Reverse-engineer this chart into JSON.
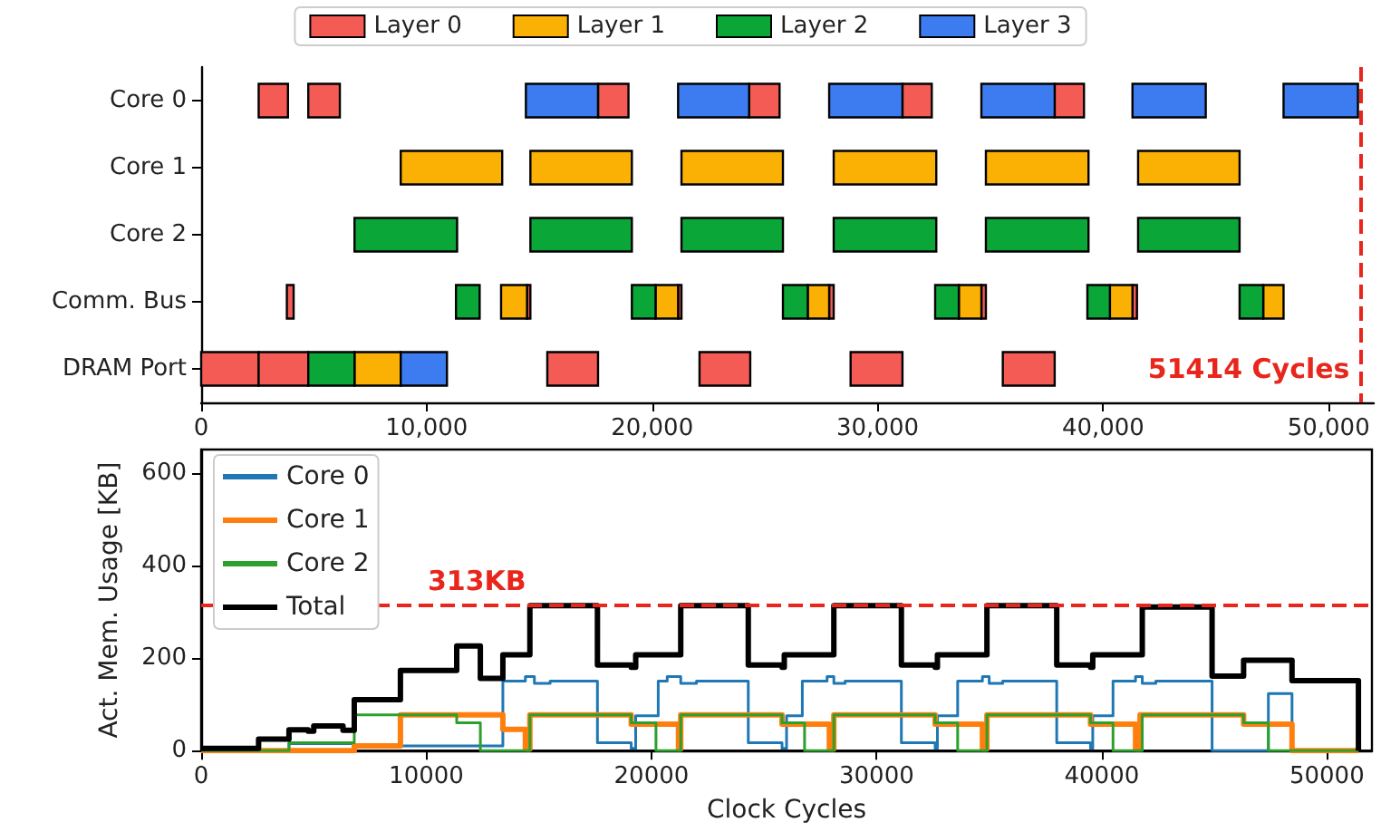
{
  "chart_data": [
    {
      "type": "bar",
      "orientation": "horizontal",
      "categories": [
        "Core 0",
        "Core 1",
        "Core 2",
        "Comm. Bus",
        "DRAM Port"
      ],
      "xlim": [
        0,
        52000
      ],
      "xticks": [
        0,
        {
          "value": 10000,
          "label": "10,000"
        },
        {
          "value": 20000,
          "label": "20,000"
        },
        {
          "value": 30000,
          "label": "30,000"
        },
        {
          "value": 40000,
          "label": "40,000"
        },
        {
          "value": 50000,
          "label": "50,000"
        }
      ],
      "legend": "top",
      "grid": false,
      "ref_lines": [
        {
          "axis": "x",
          "value": 51414,
          "label": "51414 Cycles",
          "color": "#e8261c",
          "line_style": "dashed"
        }
      ],
      "series": [
        {
          "name": "Layer 0",
          "color": "#f55b55",
          "values": [
            1300,
            null,
            null,
            300,
            2550
          ],
          "base": [
            2550,
            null,
            null,
            3800,
            0
          ]
        },
        {
          "color": "#f55b55",
          "values": [
            1400,
            null,
            null,
            150,
            2200
          ],
          "base": [
            4750,
            null,
            null,
            14450,
            2550
          ]
        },
        {
          "color": "#f55b55",
          "values": [
            1350,
            null,
            null,
            150,
            2250
          ],
          "base": [
            17600,
            null,
            null,
            21150,
            15350
          ]
        },
        {
          "color": "#f55b55",
          "values": [
            1350,
            null,
            null,
            200,
            2250
          ],
          "base": [
            24300,
            null,
            null,
            27850,
            22100
          ]
        },
        {
          "color": "#f55b55",
          "values": [
            1300,
            null,
            null,
            200,
            2300
          ],
          "base": [
            31100,
            null,
            null,
            34600,
            28800
          ]
        },
        {
          "color": "#f55b55",
          "values": [
            1300,
            null,
            null,
            200,
            2300
          ],
          "base": [
            37850,
            null,
            null,
            41300,
            35550
          ]
        },
        {
          "name": "Layer 1",
          "color": "#fbb104",
          "values": [
            null,
            4500,
            null,
            1150,
            2050
          ],
          "base": [
            null,
            8850,
            null,
            13300,
            6800
          ]
        },
        {
          "color": "#fbb104",
          "values": [
            null,
            4500,
            null,
            1000,
            null
          ],
          "base": [
            null,
            14600,
            null,
            20150,
            null
          ]
        },
        {
          "color": "#fbb104",
          "values": [
            null,
            4500,
            null,
            950,
            null
          ],
          "base": [
            null,
            21300,
            null,
            26900,
            null
          ]
        },
        {
          "color": "#fbb104",
          "values": [
            null,
            4550,
            null,
            1000,
            null
          ],
          "base": [
            null,
            28050,
            null,
            33600,
            null
          ]
        },
        {
          "color": "#fbb104",
          "values": [
            null,
            4550,
            null,
            1000,
            null
          ],
          "base": [
            null,
            34800,
            null,
            40300,
            null
          ]
        },
        {
          "color": "#fbb104",
          "values": [
            null,
            4500,
            null,
            900,
            null
          ],
          "base": [
            null,
            41550,
            null,
            47100,
            null
          ]
        },
        {
          "name": "Layer 2",
          "color": "#0aa637",
          "values": [
            null,
            null,
            4550,
            1050,
            2050
          ],
          "base": [
            null,
            null,
            6800,
            11300,
            4750
          ]
        },
        {
          "color": "#0aa637",
          "values": [
            null,
            null,
            4500,
            1050,
            null
          ],
          "base": [
            null,
            null,
            14600,
            19100,
            null
          ]
        },
        {
          "color": "#0aa637",
          "values": [
            null,
            null,
            4500,
            1100,
            null
          ],
          "base": [
            null,
            null,
            21300,
            25800,
            null
          ]
        },
        {
          "color": "#0aa637",
          "values": [
            null,
            null,
            4550,
            1050,
            null
          ],
          "base": [
            null,
            null,
            28050,
            32550,
            null
          ]
        },
        {
          "color": "#0aa637",
          "values": [
            null,
            null,
            4550,
            1000,
            null
          ],
          "base": [
            null,
            null,
            34800,
            39300,
            null
          ]
        },
        {
          "color": "#0aa637",
          "values": [
            null,
            null,
            4500,
            1050,
            null
          ],
          "base": [
            null,
            null,
            41550,
            46050,
            null
          ]
        },
        {
          "name": "Layer 3",
          "color": "#3d7cf0",
          "values": [
            3200,
            null,
            null,
            null,
            2050
          ],
          "base": [
            14400,
            null,
            null,
            null,
            8850
          ]
        },
        {
          "color": "#3d7cf0",
          "values": [
            3150,
            null,
            null,
            null,
            null
          ],
          "base": [
            21150,
            null,
            null,
            null,
            null
          ]
        },
        {
          "color": "#3d7cf0",
          "values": [
            3250,
            null,
            null,
            null,
            null
          ],
          "base": [
            27850,
            null,
            null,
            null,
            null
          ]
        },
        {
          "color": "#3d7cf0",
          "values": [
            3250,
            null,
            null,
            null,
            null
          ],
          "base": [
            34600,
            null,
            null,
            null,
            null
          ]
        },
        {
          "color": "#3d7cf0",
          "values": [
            3250,
            null,
            null,
            null,
            null
          ],
          "base": [
            41300,
            null,
            null,
            null,
            null
          ]
        },
        {
          "color": "#3d7cf0",
          "values": [
            3300,
            null,
            null,
            null,
            null
          ],
          "base": [
            48000,
            null,
            null,
            null,
            null
          ]
        }
      ]
    },
    {
      "type": "step",
      "xlabel": "Clock Cycles",
      "ylabel": "Act. Mem. Usage [KB]",
      "xlim": [
        0,
        52000
      ],
      "xticks": [
        0,
        10000,
        20000,
        30000,
        40000,
        50000
      ],
      "ylim": [
        0,
        650
      ],
      "yticks": [
        0,
        200,
        400,
        600
      ],
      "legend": "top left",
      "grid": false,
      "marker": "none",
      "ref_lines": [
        {
          "axis": "y",
          "value": 313,
          "label": "313KB",
          "color": "#e8261c",
          "line_style": "dashed"
        }
      ],
      "series": [
        {
          "name": "Core 0",
          "color": "#1f77b4",
          "x": [
            0,
            3900,
            6800,
            13400,
            14400,
            14800,
            15500,
            17600,
            19100,
            19300,
            20300,
            20700,
            21300,
            22000,
            24300,
            25800,
            26000,
            26700,
            27800,
            28100,
            28600,
            31100,
            32600,
            32700,
            33600,
            34700,
            35000,
            35600,
            38000,
            39500,
            39600,
            40500,
            41500,
            41800,
            42400,
            44900,
            47400,
            48450,
            51400
          ],
          "values": [
            0,
            15,
            10,
            150,
            160,
            145,
            150,
            17,
            5,
            75,
            150,
            160,
            145,
            150,
            17,
            5,
            75,
            150,
            160,
            145,
            150,
            17,
            5,
            75,
            150,
            160,
            145,
            150,
            17,
            5,
            75,
            150,
            160,
            145,
            150,
            0,
            123,
            0,
            0
          ]
        },
        {
          "name": "Core 1",
          "color": "#ff7f0e",
          "x": [
            0,
            6800,
            8850,
            13400,
            14400,
            14600,
            19100,
            21200,
            21300,
            25800,
            27900,
            28100,
            32600,
            34700,
            34900,
            39500,
            41500,
            41700,
            46300,
            48450,
            51400
          ],
          "values": [
            0,
            10,
            77,
            46,
            4,
            77,
            57,
            4,
            77,
            57,
            4,
            77,
            57,
            4,
            77,
            57,
            4,
            77,
            57,
            0,
            0
          ]
        },
        {
          "name": "Core 2",
          "color": "#2ca02c",
          "x": [
            0,
            3900,
            6800,
            11350,
            12400,
            14600,
            19100,
            20200,
            21300,
            25800,
            26800,
            28100,
            32600,
            33600,
            34900,
            39500,
            40500,
            41800,
            46300,
            47400,
            51400
          ],
          "values": [
            0,
            17,
            77,
            60,
            0,
            77,
            60,
            0,
            77,
            60,
            0,
            77,
            60,
            0,
            77,
            60,
            0,
            77,
            60,
            0,
            0
          ]
        },
        {
          "name": "Total",
          "color": "#000000",
          "x": [
            0,
            2550,
            3900,
            4750,
            5000,
            6300,
            6800,
            8850,
            11350,
            12400,
            13400,
            14600,
            17600,
            19100,
            19300,
            21300,
            24300,
            25800,
            25900,
            28100,
            31100,
            32600,
            32700,
            34900,
            38000,
            39500,
            39600,
            41800,
            44900,
            46300,
            48450,
            51400
          ],
          "values": [
            5,
            25,
            45,
            42,
            53,
            44,
            110,
            173,
            226,
            156,
            207,
            313,
            185,
            180,
            207,
            313,
            185,
            180,
            207,
            313,
            185,
            180,
            207,
            313,
            185,
            180,
            207,
            310,
            161,
            195,
            151,
            0
          ]
        }
      ]
    }
  ]
}
